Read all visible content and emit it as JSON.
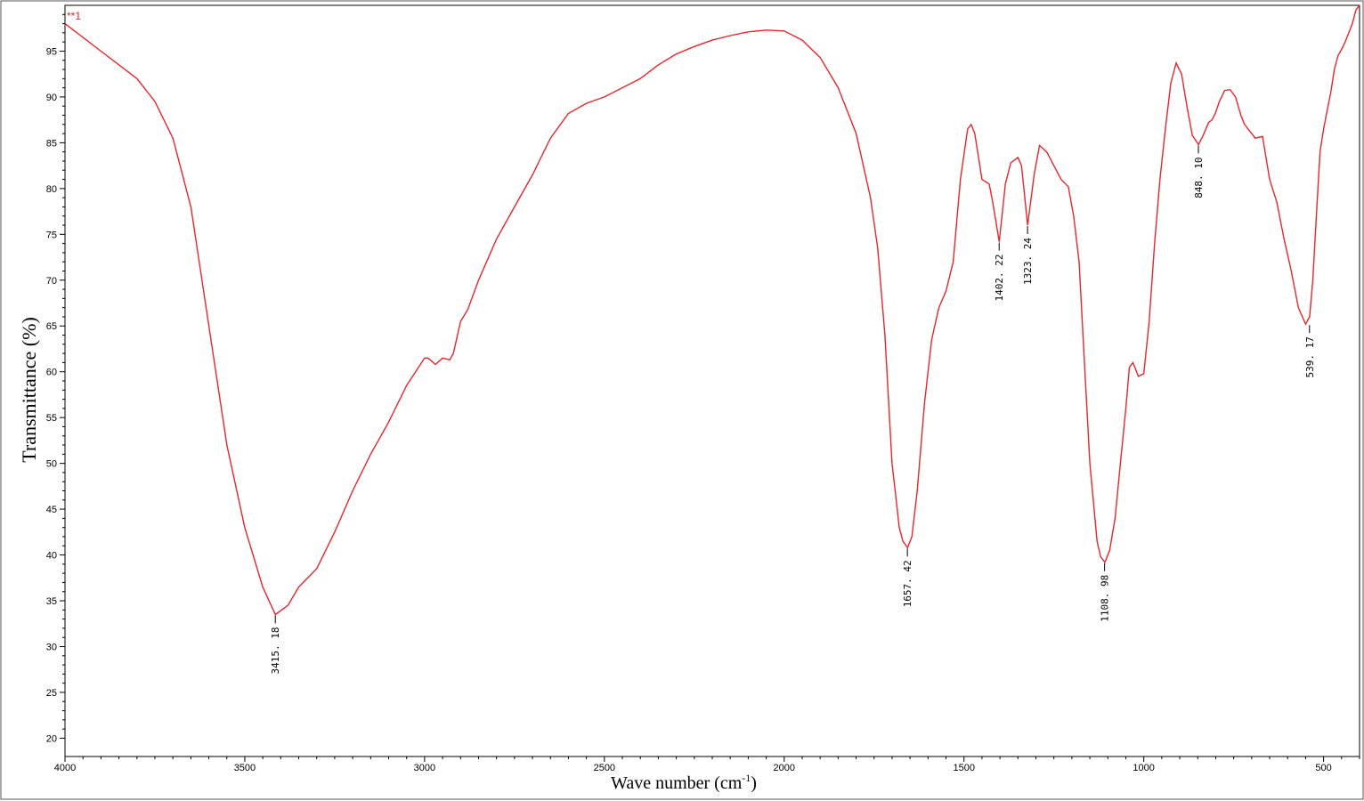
{
  "chart_data": {
    "type": "line",
    "series_tag": "**1",
    "xlabel": "Wave number (cm",
    "xlabel_sup": "-1",
    "xlabel_close": ")",
    "ylabel": "Transmittance (%)",
    "xlim": [
      4000,
      400
    ],
    "ylim": [
      18,
      100
    ],
    "x_ticks": [
      4000,
      3500,
      3000,
      2500,
      2000,
      1500,
      1000,
      500
    ],
    "y_ticks": [
      20,
      25,
      30,
      35,
      40,
      45,
      50,
      55,
      60,
      65,
      70,
      75,
      80,
      85,
      90,
      95
    ],
    "line_color": "#e8262b",
    "series": [
      {
        "x": [
          4000,
          3900,
          3800,
          3750,
          3700,
          3650,
          3600,
          3550,
          3500,
          3450,
          3415,
          3380,
          3350,
          3300,
          3250,
          3200,
          3150,
          3100,
          3050,
          3000,
          2990,
          2970,
          2950,
          2930,
          2920,
          2900,
          2880,
          2850,
          2800,
          2750,
          2700,
          2650,
          2600,
          2550,
          2500,
          2450,
          2400,
          2350,
          2300,
          2250,
          2200,
          2150,
          2100,
          2050,
          2000,
          1950,
          1900,
          1850,
          1800,
          1760,
          1740,
          1720,
          1700,
          1690,
          1680,
          1670,
          1657,
          1645,
          1630,
          1610,
          1590,
          1570,
          1550,
          1530,
          1510,
          1490,
          1480,
          1470,
          1460,
          1450,
          1430,
          1420,
          1402,
          1385,
          1370,
          1350,
          1340,
          1323,
          1305,
          1290,
          1270,
          1250,
          1230,
          1210,
          1195,
          1180,
          1165,
          1150,
          1130,
          1120,
          1108,
          1095,
          1080,
          1065,
          1050,
          1040,
          1030,
          1015,
          1000,
          985,
          970,
          955,
          940,
          925,
          910,
          895,
          880,
          865,
          848,
          835,
          820,
          810,
          800,
          790,
          775,
          760,
          745,
          730,
          720,
          700,
          690,
          670,
          650,
          630,
          610,
          590,
          570,
          550,
          539,
          530,
          520,
          510,
          500,
          490,
          480,
          470,
          460,
          450,
          440,
          430,
          420,
          410,
          400
        ],
        "y": [
          98,
          95,
          92,
          89.5,
          85.5,
          78,
          65,
          52,
          43,
          36.5,
          33.5,
          34.5,
          36.5,
          38.5,
          42.5,
          47,
          51,
          54.5,
          58.5,
          61.5,
          61.5,
          60.8,
          61.5,
          61.3,
          62,
          65.5,
          66.8,
          70,
          74.5,
          78,
          81.5,
          85.5,
          88.2,
          89.3,
          90,
          91,
          92,
          93.5,
          94.7,
          95.5,
          96.2,
          96.7,
          97.1,
          97.3,
          97.2,
          96.2,
          94.3,
          91,
          86,
          79,
          73.5,
          64,
          50,
          46.5,
          43,
          41.5,
          40.8,
          42,
          47,
          56.5,
          63.5,
          67,
          68.8,
          72,
          81,
          86.5,
          87,
          86,
          83.5,
          81,
          80.5,
          78.5,
          74.2,
          80.5,
          82.8,
          83.4,
          82.5,
          76,
          81.5,
          84.7,
          84,
          82.5,
          81,
          80.2,
          77,
          72,
          61,
          50,
          41.5,
          39.8,
          39.2,
          40.5,
          44,
          50,
          56,
          60.5,
          61,
          59.5,
          59.8,
          65.5,
          74,
          81,
          86.5,
          91.5,
          93.7,
          92.5,
          89,
          85.8,
          84.8,
          85.8,
          87.2,
          87.5,
          88.3,
          89.5,
          90.7,
          90.8,
          90,
          88,
          87,
          86,
          85.5,
          85.7,
          81,
          78.5,
          74.5,
          71,
          67,
          65.2,
          66,
          70,
          77,
          84,
          86.5,
          88.5,
          90.5,
          93,
          94.5,
          95.2,
          96,
          97,
          98,
          99.5,
          100
        ]
      }
    ],
    "annotations": [
      {
        "x": 3415.18,
        "y": 33.5,
        "label": "3415. 18"
      },
      {
        "x": 1657.42,
        "y": 40.8,
        "label": "1657. 42"
      },
      {
        "x": 1402.22,
        "y": 74.2,
        "label": "1402. 22"
      },
      {
        "x": 1323.24,
        "y": 76,
        "label": "1323. 24"
      },
      {
        "x": 1108.98,
        "y": 39.2,
        "label": "1108. 98"
      },
      {
        "x": 848.1,
        "y": 84.8,
        "label": "848. 10"
      },
      {
        "x": 539.17,
        "y": 65.2,
        "label": "539. 17"
      }
    ],
    "grid": false
  }
}
